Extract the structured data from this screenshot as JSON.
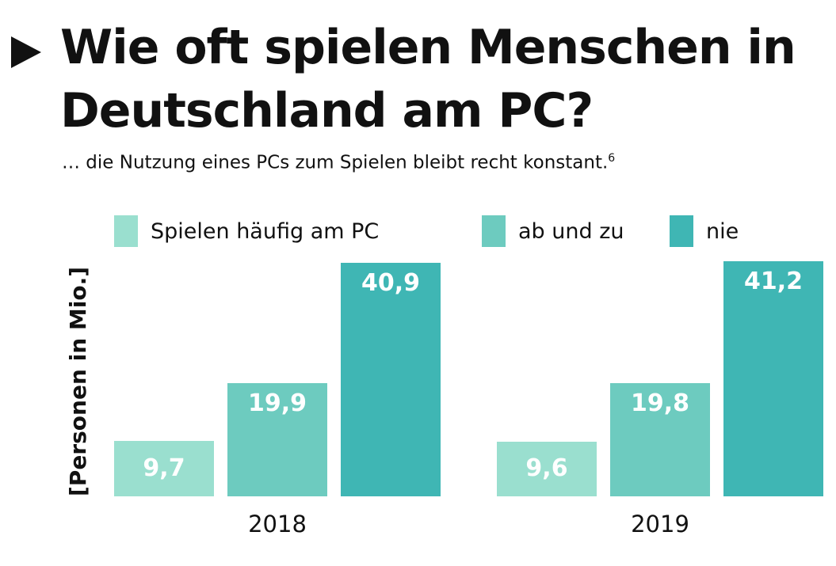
{
  "chart_data": {
    "type": "bar",
    "title": "Wie oft spielen Menschen in Deutschland am PC?",
    "subtitle": "… die Nutzung eines PCs zum Spielen bleibt recht konstant.",
    "footnote_marker": "6",
    "ylabel": "[Personen in Mio.]",
    "categories": [
      "2018",
      "2019"
    ],
    "series": [
      {
        "name": "Spielen häufig am PC",
        "values": [
          9.7,
          9.6
        ],
        "labels": [
          "9,7",
          "9,6"
        ],
        "color": "#9ADFCF"
      },
      {
        "name": "ab und zu",
        "values": [
          19.9,
          19.8
        ],
        "labels": [
          "19,9",
          "19,8"
        ],
        "color": "#6DCBBF"
      },
      {
        "name": "nie",
        "values": [
          40.9,
          41.2
        ],
        "labels": [
          "40,9",
          "41,2"
        ],
        "color": "#3FB6B4"
      }
    ],
    "legend": "top",
    "grid": false
  }
}
